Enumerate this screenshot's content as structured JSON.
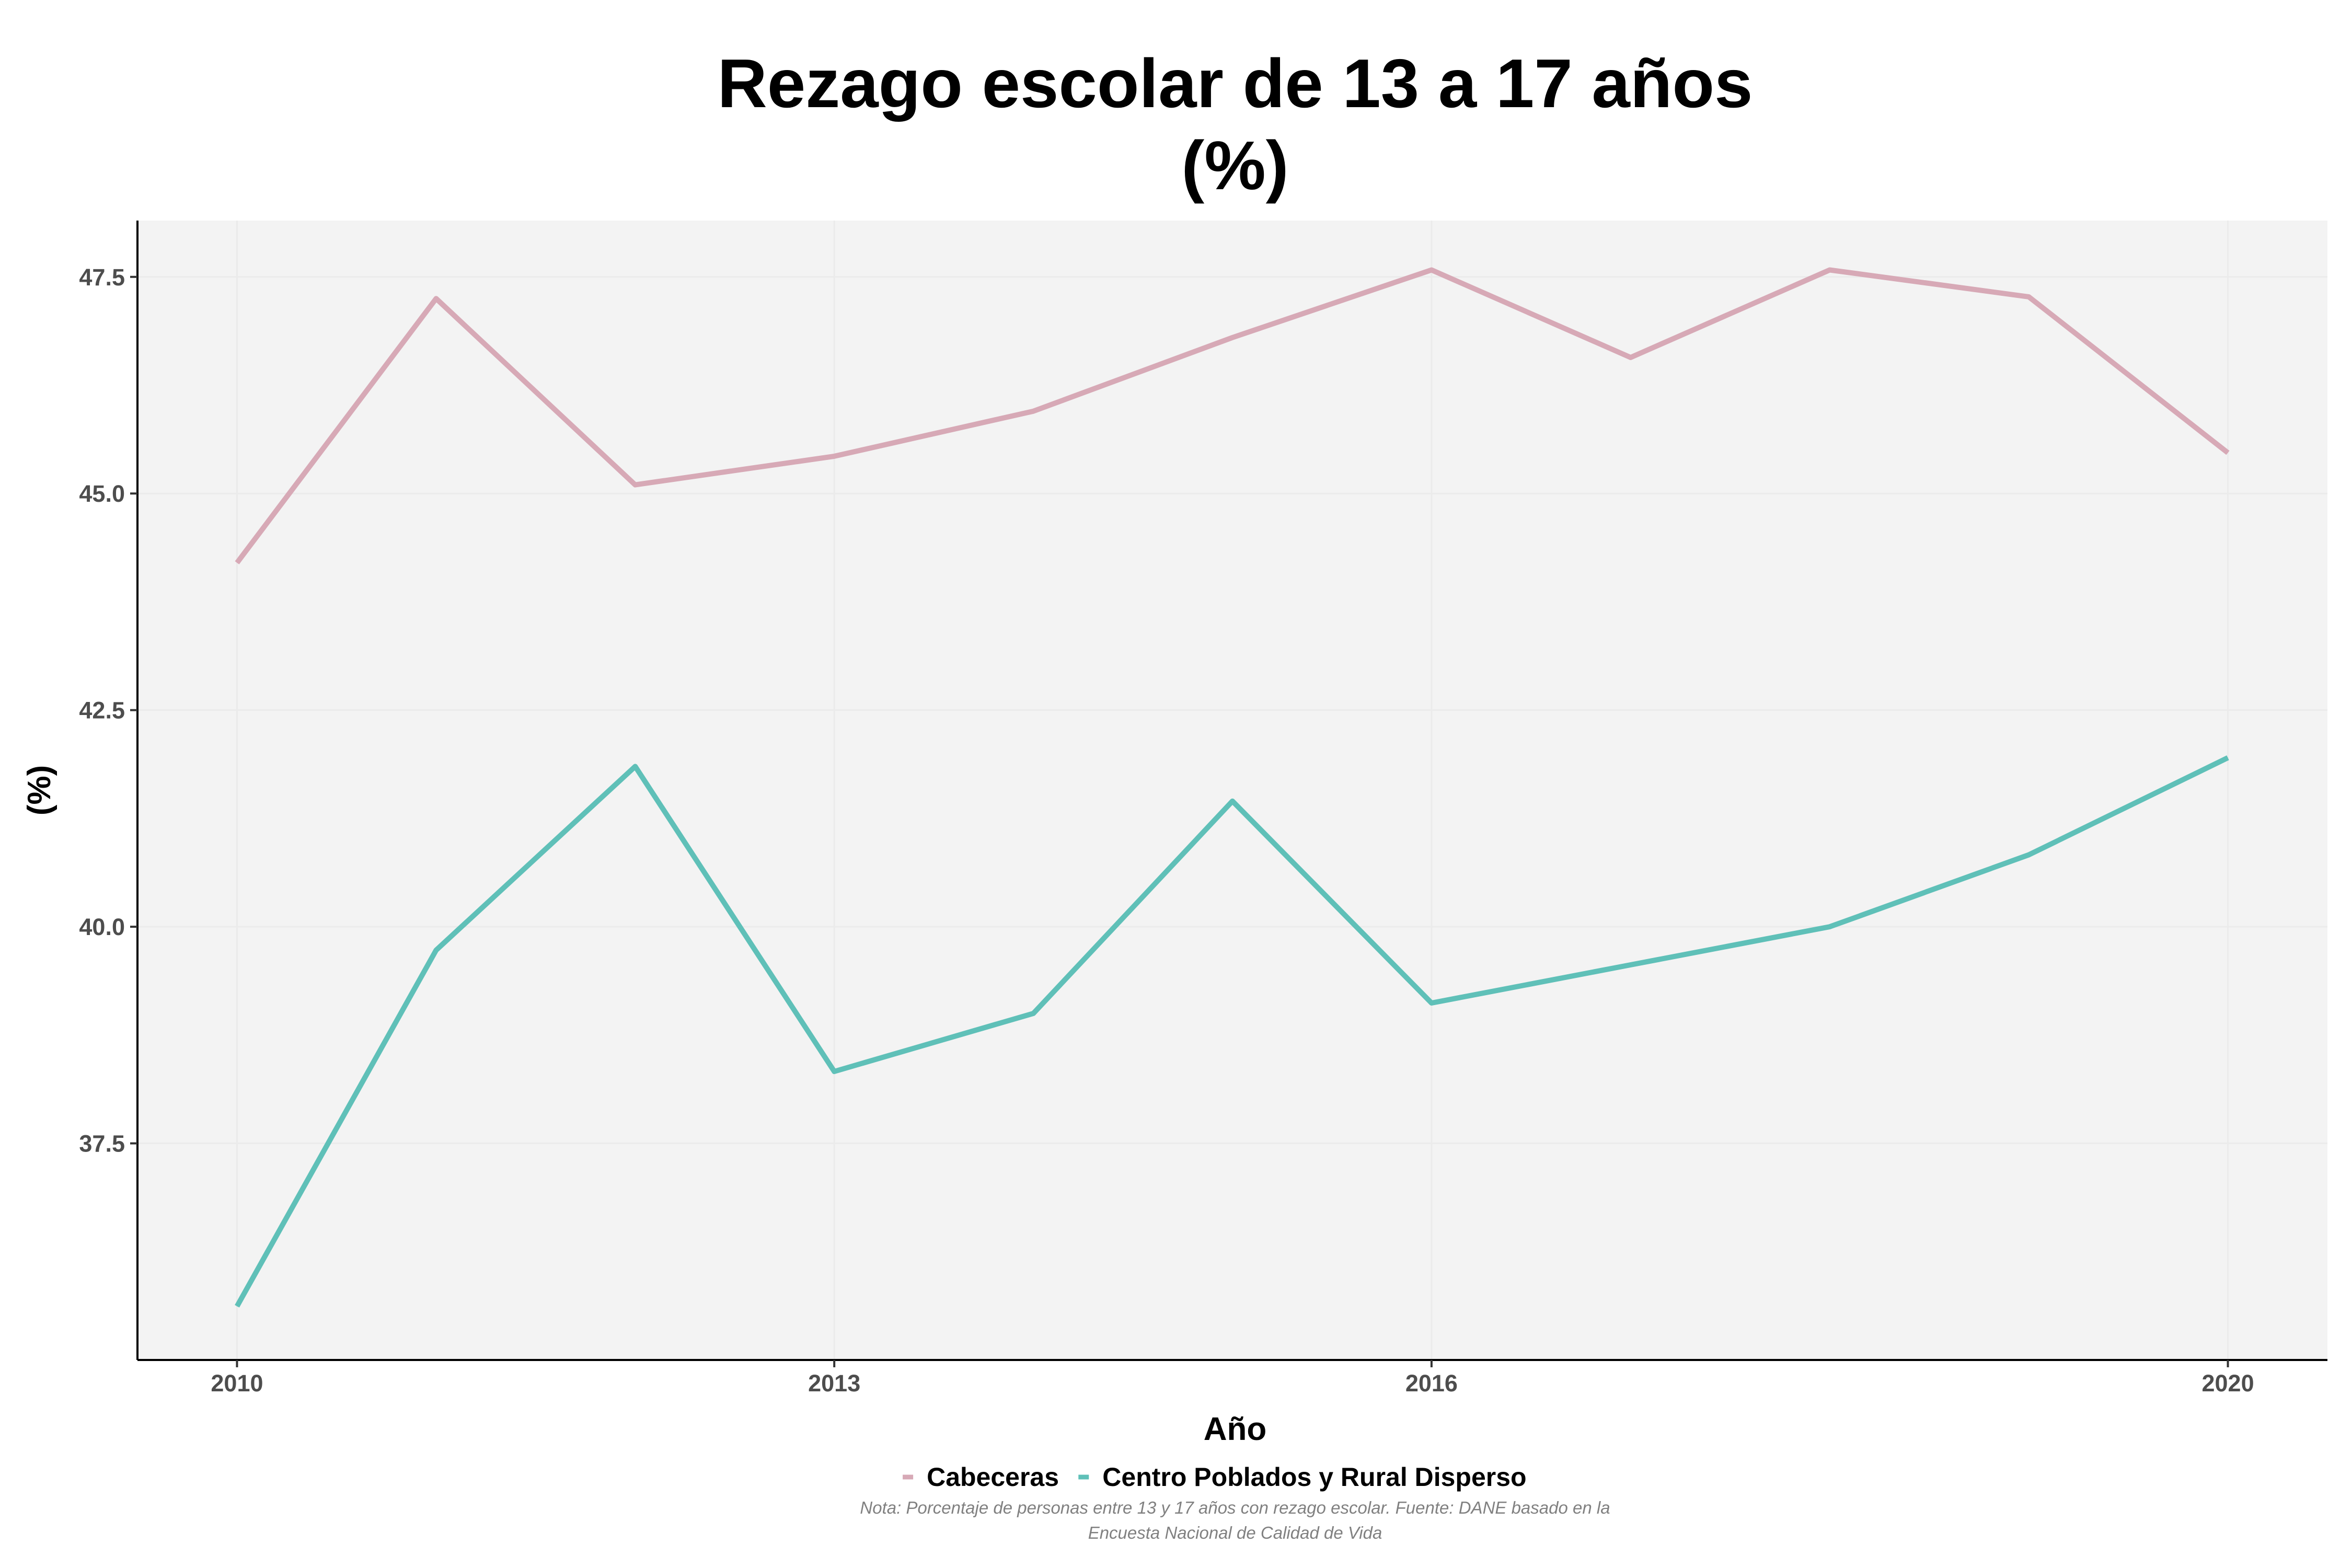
{
  "chart_data": {
    "type": "line",
    "title": "Rezago escolar de 13 a 17 años",
    "subtitle": "(%)",
    "xlabel": "Año",
    "ylabel": "(%)",
    "x": [
      2010,
      2011,
      2012,
      2013,
      2014,
      2015,
      2016,
      2017,
      2018,
      2019,
      2020
    ],
    "xlim": [
      2009.5,
      2020.5
    ],
    "ylim": [
      35.0,
      48.15
    ],
    "x_ticks": [
      2010,
      2013,
      2016,
      2020
    ],
    "y_ticks": [
      37.5,
      40.0,
      42.5,
      45.0,
      47.5
    ],
    "x_tick_labels": [
      "2010",
      "2013",
      "2016",
      "2020"
    ],
    "y_tick_labels": [
      "37.5",
      "40.0",
      "42.5",
      "45.0",
      "47.5"
    ],
    "grid": true,
    "legend_position": "bottom",
    "series": [
      {
        "name": "Cabeceras",
        "color": "#d7a9b6",
        "values": [
          44.2,
          47.25,
          45.1,
          45.43,
          45.95,
          46.8,
          47.58,
          46.57,
          47.58,
          47.27,
          45.47
        ]
      },
      {
        "name": "Centro Poblados y Rural Disperso",
        "color": "#5fc0b8",
        "values": [
          35.62,
          39.73,
          41.85,
          38.33,
          39.0,
          41.45,
          39.12,
          39.56,
          40.0,
          40.83,
          41.95
        ]
      }
    ],
    "note": "Nota: Porcentaje de personas entre 13 y 17 años con rezago escolar. Fuente: DANE basado en la",
    "note_line2": "Encuesta Nacional de Calidad de Vida"
  },
  "colors": {
    "panel_background": "#f3f3f3",
    "grid": "#ebebeb",
    "axis_line": "#000000"
  }
}
